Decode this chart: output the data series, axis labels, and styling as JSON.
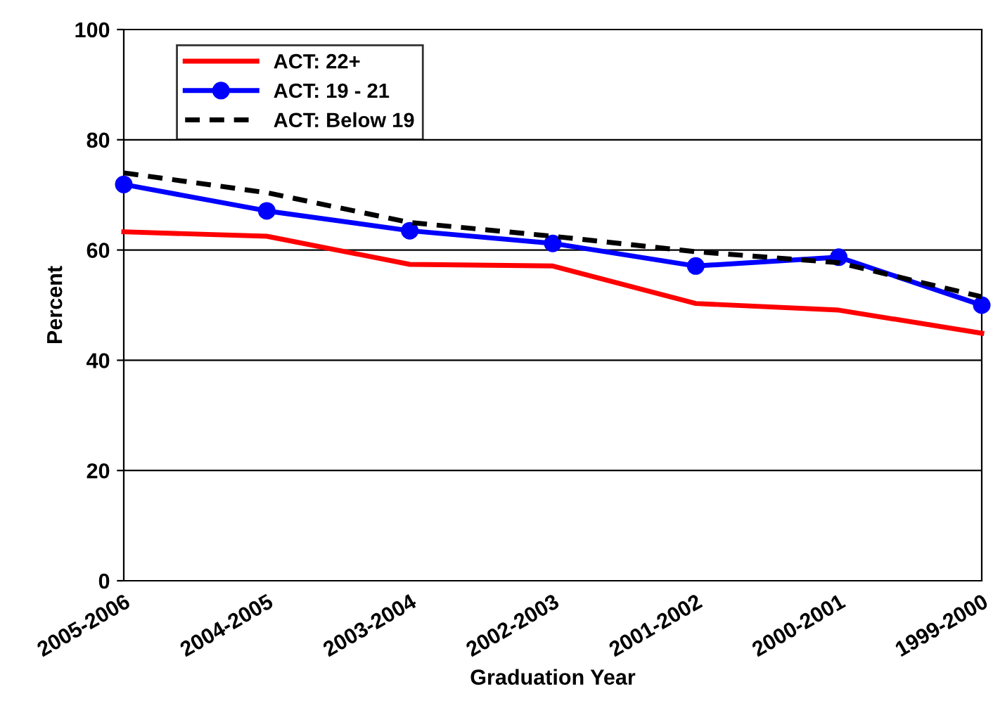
{
  "chart_data": {
    "type": "line",
    "xlabel": "Graduation Year",
    "ylabel": "Percent",
    "categories": [
      "2005-2006",
      "2004-2005",
      "2003-2004",
      "2002-2003",
      "2001-2002",
      "2000-2001",
      "1999-2000"
    ],
    "series": [
      {
        "name": "ACT: 22+",
        "color": "#ff0000",
        "values": [
          63.3,
          62.5,
          57.4,
          57.1,
          50.3,
          49.1,
          44.9
        ],
        "marker": "none",
        "line_style": "solid"
      },
      {
        "name": "ACT: 19 - 21",
        "color": "#0000ff",
        "values": [
          71.9,
          67.1,
          63.5,
          61.2,
          57.1,
          58.7,
          50.0
        ],
        "marker": "circle",
        "line_style": "solid"
      },
      {
        "name": "ACT: Below 19",
        "color": "#000000",
        "values": [
          74.0,
          70.4,
          65.0,
          62.5,
          59.7,
          57.7,
          51.5
        ],
        "marker": "none",
        "line_style": "dashed"
      }
    ],
    "ylim": [
      0,
      100
    ],
    "yticks": [
      0,
      20,
      40,
      60,
      80,
      100
    ],
    "grid": "y",
    "legend": "top left"
  }
}
